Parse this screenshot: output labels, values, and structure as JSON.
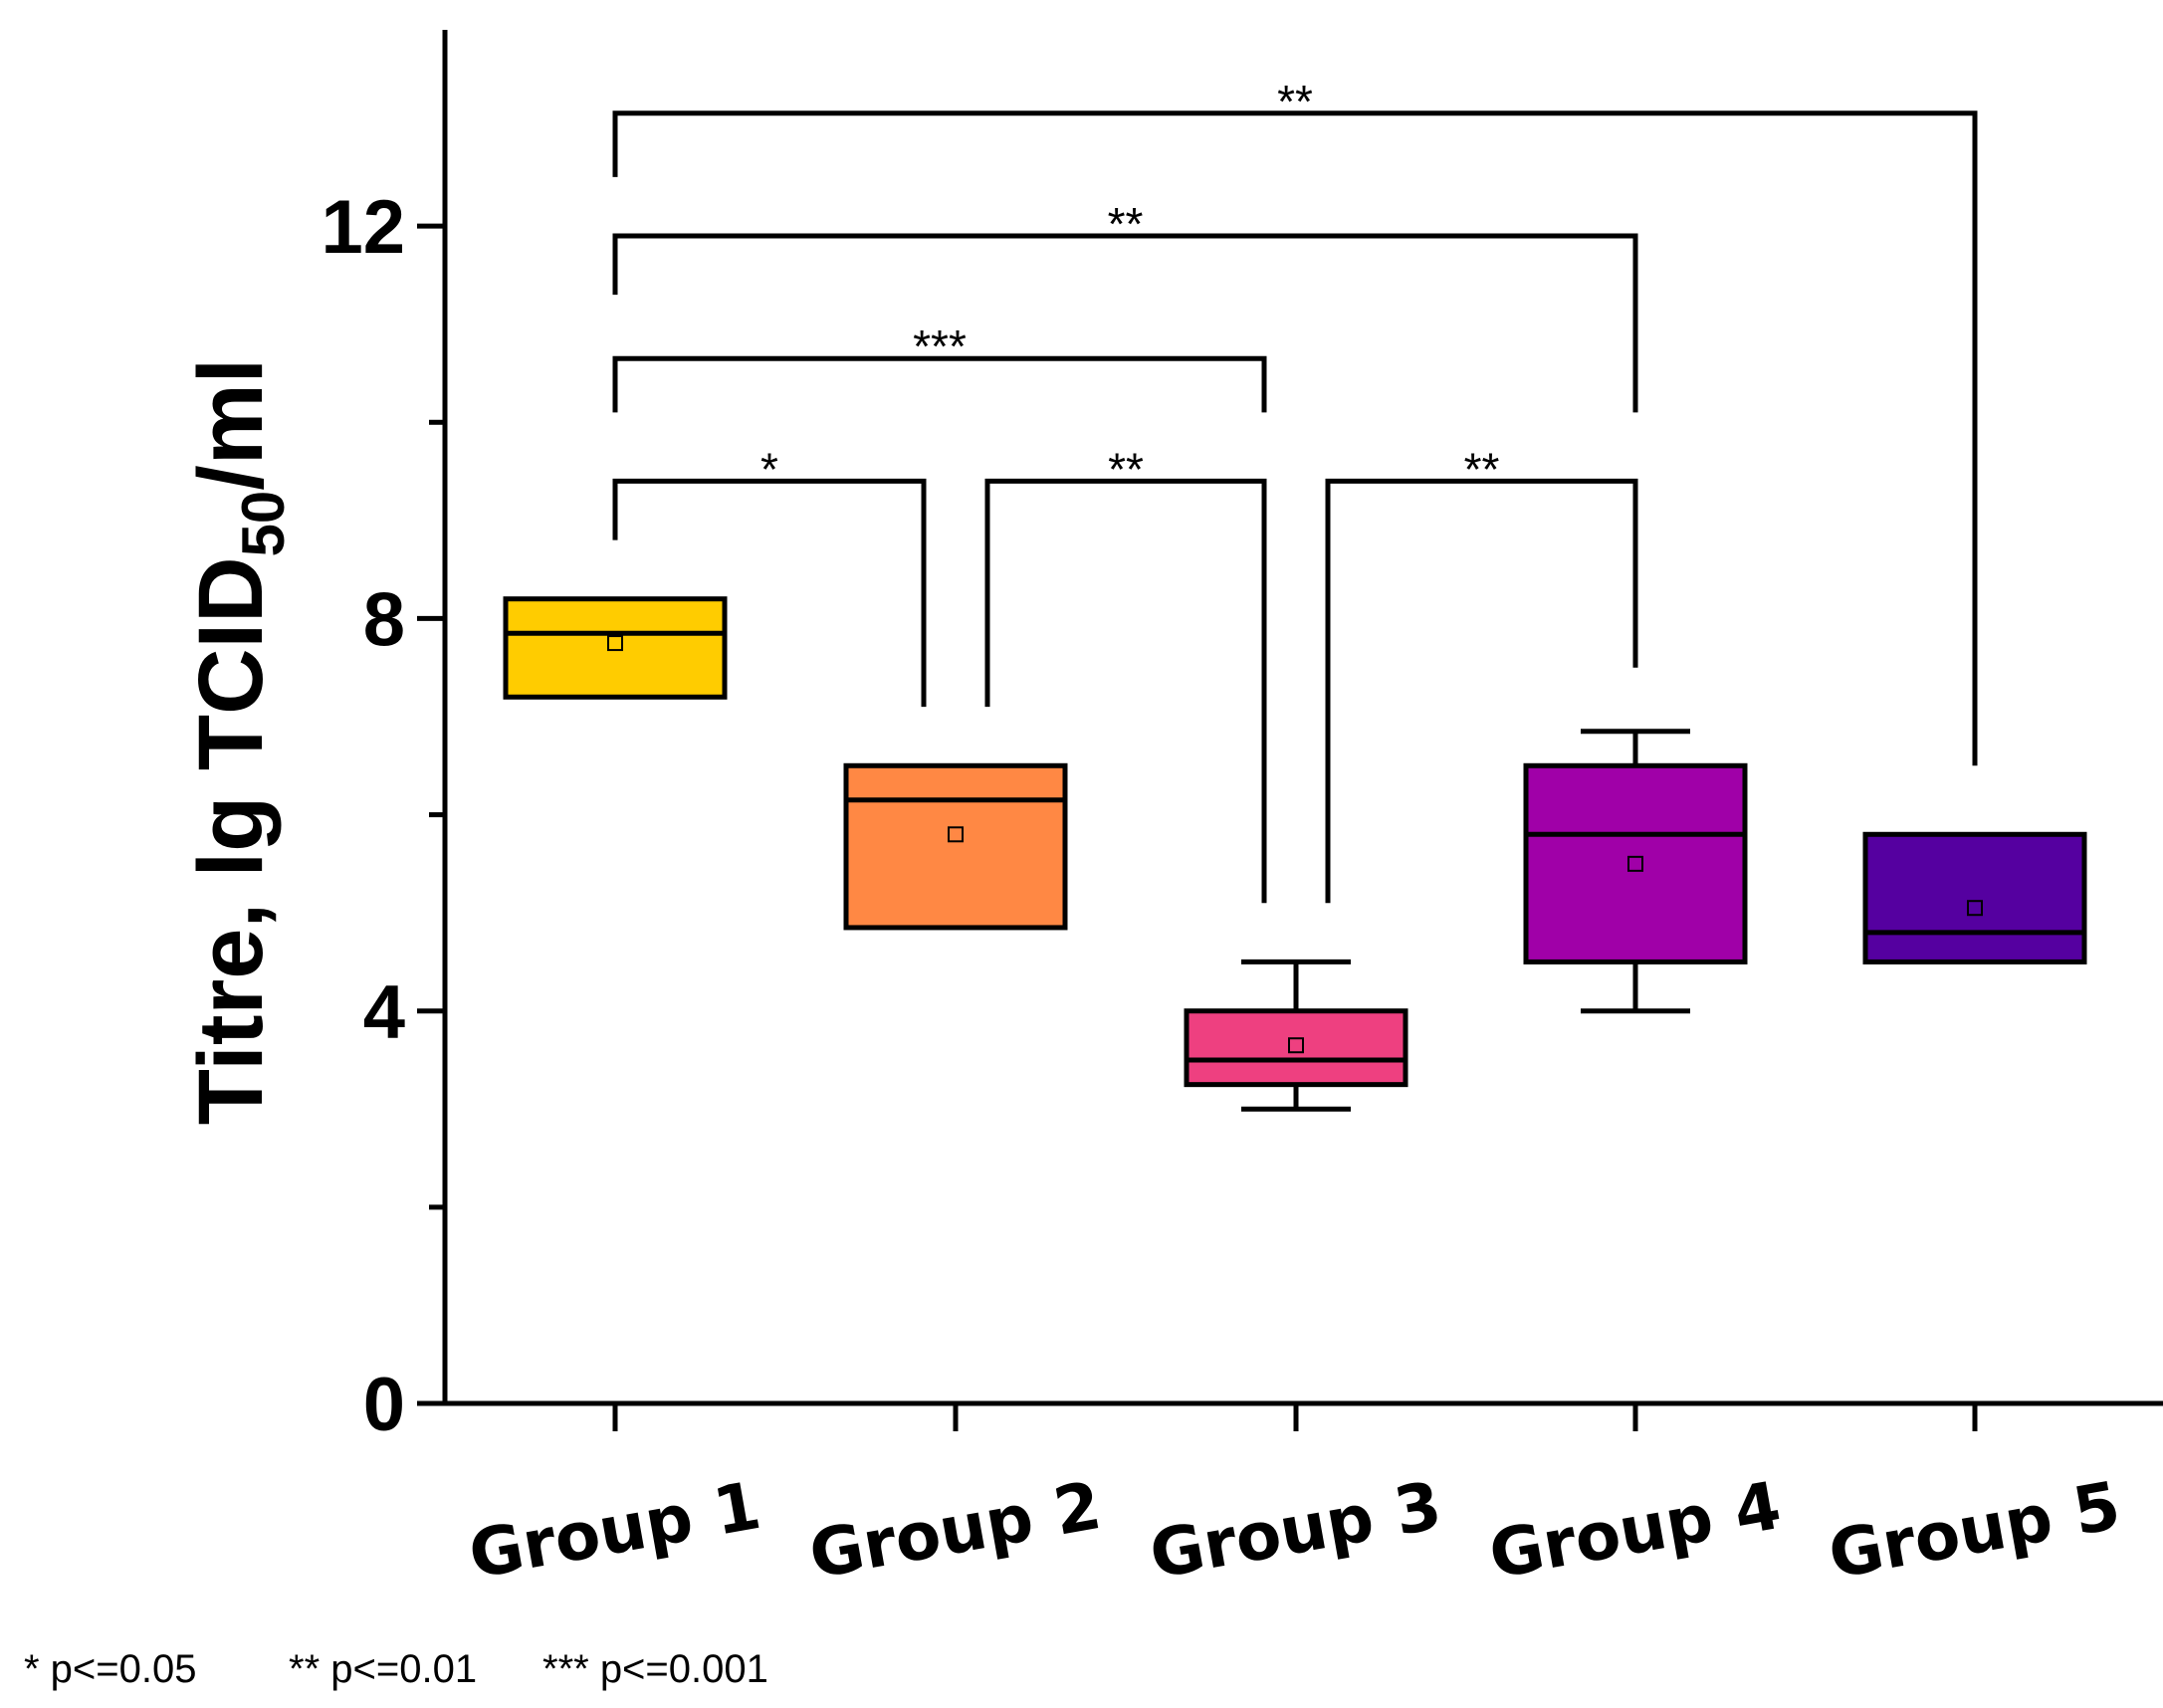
{
  "chart_data": {
    "type": "box",
    "ylabel_main": "Titre, lg TCID",
    "ylabel_sub": "50",
    "ylabel_tail": "/ml",
    "ylim": [
      0,
      14
    ],
    "yticks": [
      0,
      4,
      8,
      12
    ],
    "yticks_minor": [
      2,
      6,
      10
    ],
    "categories": [
      "Group 1",
      "Group 2",
      "Group 3",
      "Group 4",
      "Group 5"
    ],
    "boxes": [
      {
        "name": "Group 1",
        "color": "#FFCC00",
        "q1": 7.2,
        "median": 7.85,
        "q3": 8.2,
        "mean": 7.75,
        "whisker_low": null,
        "whisker_high": null
      },
      {
        "name": "Group 2",
        "color": "#FF8844",
        "q1": 4.85,
        "median": 6.15,
        "q3": 6.5,
        "mean": 5.8,
        "whisker_low": null,
        "whisker_high": null
      },
      {
        "name": "Group 3",
        "color": "#EE4080",
        "q1": 3.25,
        "median": 3.5,
        "q3": 4.0,
        "mean": 3.65,
        "whisker_low": 3.0,
        "whisker_high": 4.5
      },
      {
        "name": "Group 4",
        "color": "#A000A8",
        "q1": 4.5,
        "median": 5.8,
        "q3": 6.5,
        "mean": 5.5,
        "whisker_low": 4.0,
        "whisker_high": 6.85
      },
      {
        "name": "Group 5",
        "color": "#5500A0",
        "q1": 4.5,
        "median": 4.8,
        "q3": 5.8,
        "mean": 5.05,
        "whisker_low": null,
        "whisker_high": null
      }
    ],
    "significance": [
      {
        "from": 0,
        "to": 1,
        "label": "*",
        "y": 9.4,
        "left_end": 8.8,
        "right_end": 7.1
      },
      {
        "from": 1,
        "to": 2,
        "label": "**",
        "y": 9.4,
        "left_end": 7.1,
        "right_end": 5.1
      },
      {
        "from": 2,
        "to": 3,
        "label": "**",
        "y": 9.4,
        "left_end": 5.1,
        "right_end": 7.5
      },
      {
        "from": 0,
        "to": 2,
        "label": "***",
        "y": 10.65,
        "left_end": 10.1,
        "right_end": 10.1
      },
      {
        "from": 0,
        "to": 3,
        "label": "**",
        "y": 11.9,
        "left_end": 11.3,
        "right_end": 10.1
      },
      {
        "from": 0,
        "to": 4,
        "label": "**",
        "y": 13.15,
        "left_end": 12.5,
        "right_end": 6.5
      }
    ],
    "footnote": [
      "* p<=0.05",
      "** p<=0.01",
      "*** p<=0.001"
    ]
  }
}
